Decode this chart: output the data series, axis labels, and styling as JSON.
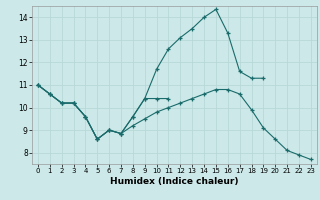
{
  "xlabel": "Humidex (Indice chaleur)",
  "bg_color": "#cce8e8",
  "grid_color": "#b8d8d8",
  "line_color": "#1a6b6b",
  "xlim": [
    -0.5,
    23.5
  ],
  "ylim": [
    7.5,
    14.5
  ],
  "yticks": [
    8,
    9,
    10,
    11,
    12,
    13,
    14
  ],
  "xticks": [
    0,
    1,
    2,
    3,
    4,
    5,
    6,
    7,
    8,
    9,
    10,
    11,
    12,
    13,
    14,
    15,
    16,
    17,
    18,
    19,
    20,
    21,
    22,
    23
  ],
  "line1_x": [
    0,
    1,
    2,
    3,
    4,
    5,
    6,
    7,
    8,
    9,
    10,
    11,
    12,
    13,
    14,
    15,
    16,
    17,
    18,
    19
  ],
  "line1_y": [
    11.0,
    10.6,
    10.2,
    10.2,
    9.6,
    8.6,
    9.0,
    8.85,
    9.6,
    10.4,
    11.7,
    12.6,
    13.1,
    13.5,
    14.0,
    14.35,
    13.3,
    11.6,
    11.3,
    11.3
  ],
  "line2_x": [
    0,
    1,
    2,
    3,
    4,
    5,
    6,
    7,
    8,
    9,
    10,
    11
  ],
  "line2_y": [
    11.0,
    10.6,
    10.2,
    10.2,
    9.6,
    8.6,
    9.0,
    8.85,
    9.6,
    10.4,
    10.4,
    10.4
  ],
  "line3_x": [
    0,
    1,
    2,
    3,
    4,
    5,
    6,
    7,
    8,
    9,
    10,
    11,
    12,
    13,
    14,
    15,
    16,
    17,
    18,
    19,
    20,
    21,
    22,
    23
  ],
  "line3_y": [
    11.0,
    10.6,
    10.2,
    10.2,
    9.6,
    8.6,
    9.0,
    8.85,
    9.2,
    9.5,
    9.8,
    10.0,
    10.2,
    10.4,
    10.6,
    10.8,
    10.8,
    10.6,
    9.9,
    9.1,
    8.6,
    8.1,
    7.9,
    7.7
  ]
}
